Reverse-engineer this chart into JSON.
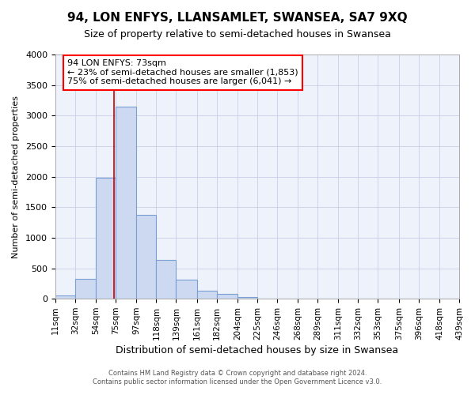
{
  "title": "94, LON ENFYS, LLANSAMLET, SWANSEA, SA7 9XQ",
  "subtitle": "Size of property relative to semi-detached houses in Swansea",
  "xlabel": "Distribution of semi-detached houses by size in Swansea",
  "ylabel": "Number of semi-detached properties",
  "bin_edges": [
    11,
    32,
    54,
    75,
    97,
    118,
    139,
    161,
    182,
    204,
    225,
    246,
    268,
    289,
    311,
    332,
    353,
    375,
    396,
    418,
    439
  ],
  "bin_counts": [
    50,
    320,
    1980,
    3150,
    1380,
    640,
    310,
    130,
    80,
    30,
    5,
    2,
    1,
    0,
    0,
    0,
    0,
    0,
    0,
    0
  ],
  "property_size": 73,
  "bar_color": "#ccd9f0",
  "bar_edge_color": "#7a9fd4",
  "vline_color": "#cc0000",
  "ylim": [
    0,
    4000
  ],
  "yticks": [
    0,
    500,
    1000,
    1500,
    2000,
    2500,
    3000,
    3500,
    4000
  ],
  "annotation_title": "94 LON ENFYS: 73sqm",
  "annotation_line1": "← 23% of semi-detached houses are smaller (1,853)",
  "annotation_line2": "75% of semi-detached houses are larger (6,041) →",
  "footer_line1": "Contains HM Land Registry data © Crown copyright and database right 2024.",
  "footer_line2": "Contains public sector information licensed under the Open Government Licence v3.0.",
  "bg_color": "#ffffff",
  "plot_bg_color": "#eef2fa",
  "grid_color": "#c8d0e8"
}
